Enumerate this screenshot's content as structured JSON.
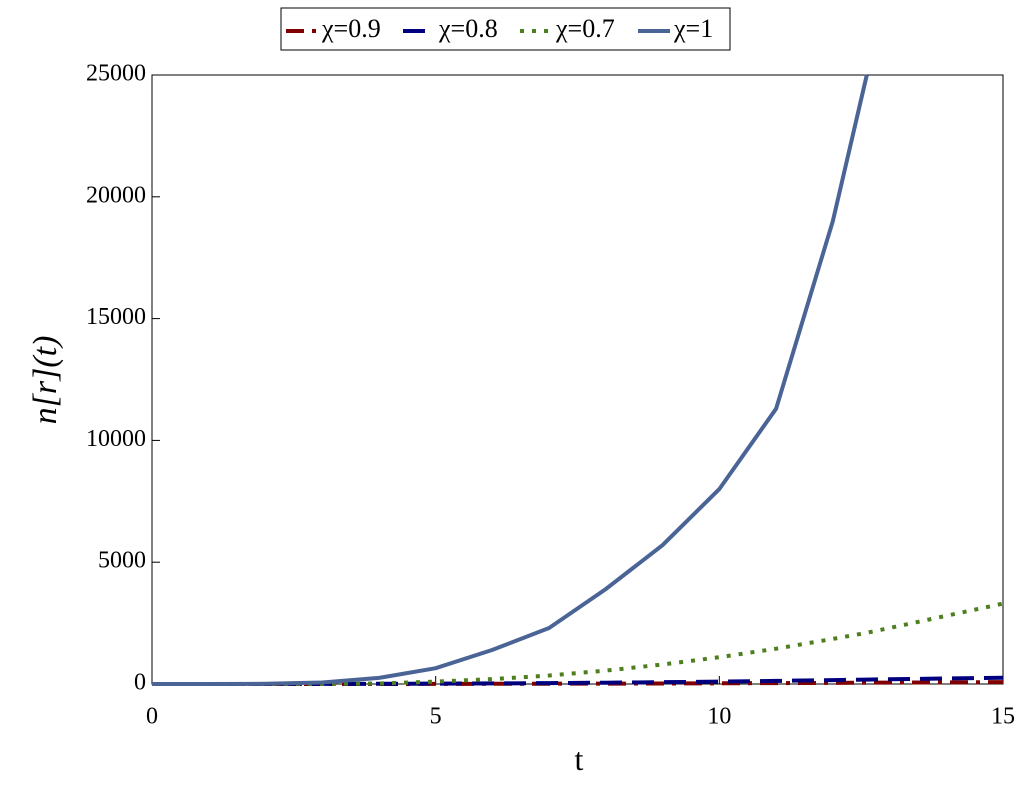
{
  "chart_data": {
    "type": "line",
    "x_label": "t",
    "y_label": "n[r](t)",
    "x": [
      0,
      1,
      2,
      3,
      4,
      5,
      6,
      7,
      8,
      9,
      10,
      11,
      12,
      12.6,
      13,
      14,
      15
    ],
    "series": [
      {
        "name": "χ=0.9",
        "color": "#800000",
        "style": "dashdot",
        "values": [
          0,
          0,
          0,
          1,
          2,
          4,
          7,
          11,
          16,
          22,
          29,
          37,
          46,
          52,
          56,
          66,
          78
        ]
      },
      {
        "name": "χ=0.8",
        "color": "#00007f",
        "style": "dash",
        "values": [
          0,
          0,
          1,
          3,
          8,
          15,
          25,
          38,
          55,
          75,
          100,
          128,
          160,
          180,
          195,
          225,
          260
        ]
      },
      {
        "name": "χ=0.7",
        "color": "#4e7f1f",
        "style": "dot",
        "values": [
          0,
          0,
          0,
          0,
          20,
          100,
          200,
          350,
          550,
          800,
          1100,
          1450,
          1850,
          2100,
          2300,
          2800,
          3300
        ]
      },
      {
        "name": "χ=1",
        "color": "#4a6496",
        "style": "solid",
        "values": [
          0,
          0,
          10,
          60,
          250,
          650,
          1400,
          2300,
          3900,
          5700,
          8000,
          11300,
          19000,
          25000,
          null,
          null,
          null
        ]
      }
    ],
    "xlim": [
      0,
      15
    ],
    "xticks": [
      0,
      5,
      10,
      15
    ],
    "ylim": [
      0,
      25000
    ],
    "yticks": [
      0,
      5000,
      10000,
      15000,
      20000,
      25000
    ],
    "legend": "top"
  }
}
